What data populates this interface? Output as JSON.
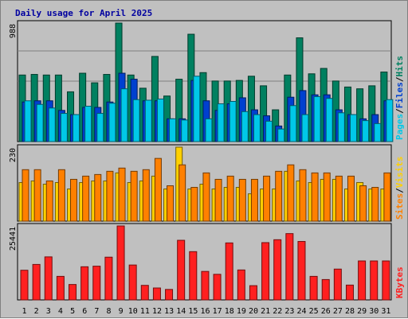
{
  "chart_data": {
    "type": "bar",
    "title": "Daily usage for April 2025",
    "days": [
      "1",
      "2",
      "3",
      "4",
      "5",
      "6",
      "7",
      "8",
      "9",
      "10",
      "11",
      "12",
      "13",
      "14",
      "15",
      "16",
      "17",
      "18",
      "19",
      "20",
      "21",
      "22",
      "23",
      "24",
      "25",
      "26",
      "27",
      "28",
      "29",
      "30",
      "31"
    ],
    "weekend_days": [
      "5",
      "6",
      "12",
      "13",
      "19",
      "20",
      "26",
      "27"
    ],
    "panels": [
      {
        "name": "top",
        "max_label": "988",
        "ymax": 988,
        "legend": [
          {
            "text": "Pages",
            "color": "#00c8e8"
          },
          {
            "text": "/",
            "color": "#000000"
          },
          {
            "text": "Files",
            "color": "#0040d0"
          },
          {
            "text": "/",
            "color": "#000000"
          },
          {
            "text": "Hits",
            "color": "#008060"
          }
        ],
        "series": [
          {
            "name": "Hits",
            "color": "#008060",
            "values": [
              555,
              560,
              555,
              555,
              415,
              570,
              490,
              560,
              988,
              555,
              445,
              710,
              380,
              520,
              895,
              575,
              505,
              505,
              510,
              545,
              465,
              265,
              555,
              865,
              565,
              610,
              505,
              455,
              440,
              465,
              580
            ]
          },
          {
            "name": "Files",
            "color": "#0040d0",
            "values": [
              330,
              340,
              340,
              260,
              225,
              285,
              285,
              330,
              570,
              520,
              340,
              340,
              190,
              190,
              510,
              340,
              260,
              315,
              365,
              265,
              215,
              130,
              370,
              425,
              390,
              390,
              265,
              225,
              190,
              225,
              340
            ]
          },
          {
            "name": "Pages",
            "color": "#00c8e8",
            "values": [
              340,
              310,
              280,
              235,
              225,
              295,
              235,
              320,
              440,
              350,
              345,
              355,
              190,
              180,
              545,
              190,
              315,
              335,
              250,
              225,
              170,
              105,
              300,
              225,
              375,
              360,
              240,
              225,
              175,
              150,
              350
            ]
          }
        ]
      },
      {
        "name": "middle",
        "max_label": "230",
        "ymax": 230,
        "legend": [
          {
            "text": "Sites",
            "color": "#ff8000"
          },
          {
            "text": "/",
            "color": "#000000"
          },
          {
            "text": "Visits",
            "color": "#ffd000"
          }
        ],
        "series": [
          {
            "name": "Visits",
            "color": "#ffd000",
            "values": [
              120,
              125,
              115,
              120,
              100,
              120,
              125,
              125,
              150,
              120,
              125,
              140,
              100,
              230,
              100,
              115,
              100,
              105,
              105,
              85,
              100,
              100,
              155,
              125,
              120,
              130,
              130,
              100,
              120,
              100,
              100
            ]
          },
          {
            "name": "Sites",
            "color": "#ff8000",
            "values": [
              160,
              160,
              125,
              160,
              130,
              140,
              145,
              155,
              165,
              155,
              160,
              195,
              110,
              175,
              105,
              150,
              130,
              140,
              130,
              130,
              140,
              155,
              175,
              160,
              150,
              150,
              140,
              140,
              110,
              105,
              150
            ]
          }
        ]
      },
      {
        "name": "bottom",
        "max_label": "25441",
        "ymax": 25441,
        "legend": [
          {
            "text": "KBytes",
            "color": "#ff2020"
          }
        ],
        "series": [
          {
            "name": "KBytes",
            "color": "#ff2020",
            "values": [
              10200,
              12200,
              14800,
              8100,
              5300,
              11400,
              11600,
              14700,
              25441,
              12000,
              5000,
              4100,
              3600,
              20500,
              16600,
              9800,
              8800,
              19600,
              10300,
              4900,
              19700,
              20700,
              22800,
              20100,
              8100,
              7000,
              10600,
              5100,
              13400,
              13400,
              13400
            ]
          }
        ]
      }
    ]
  }
}
